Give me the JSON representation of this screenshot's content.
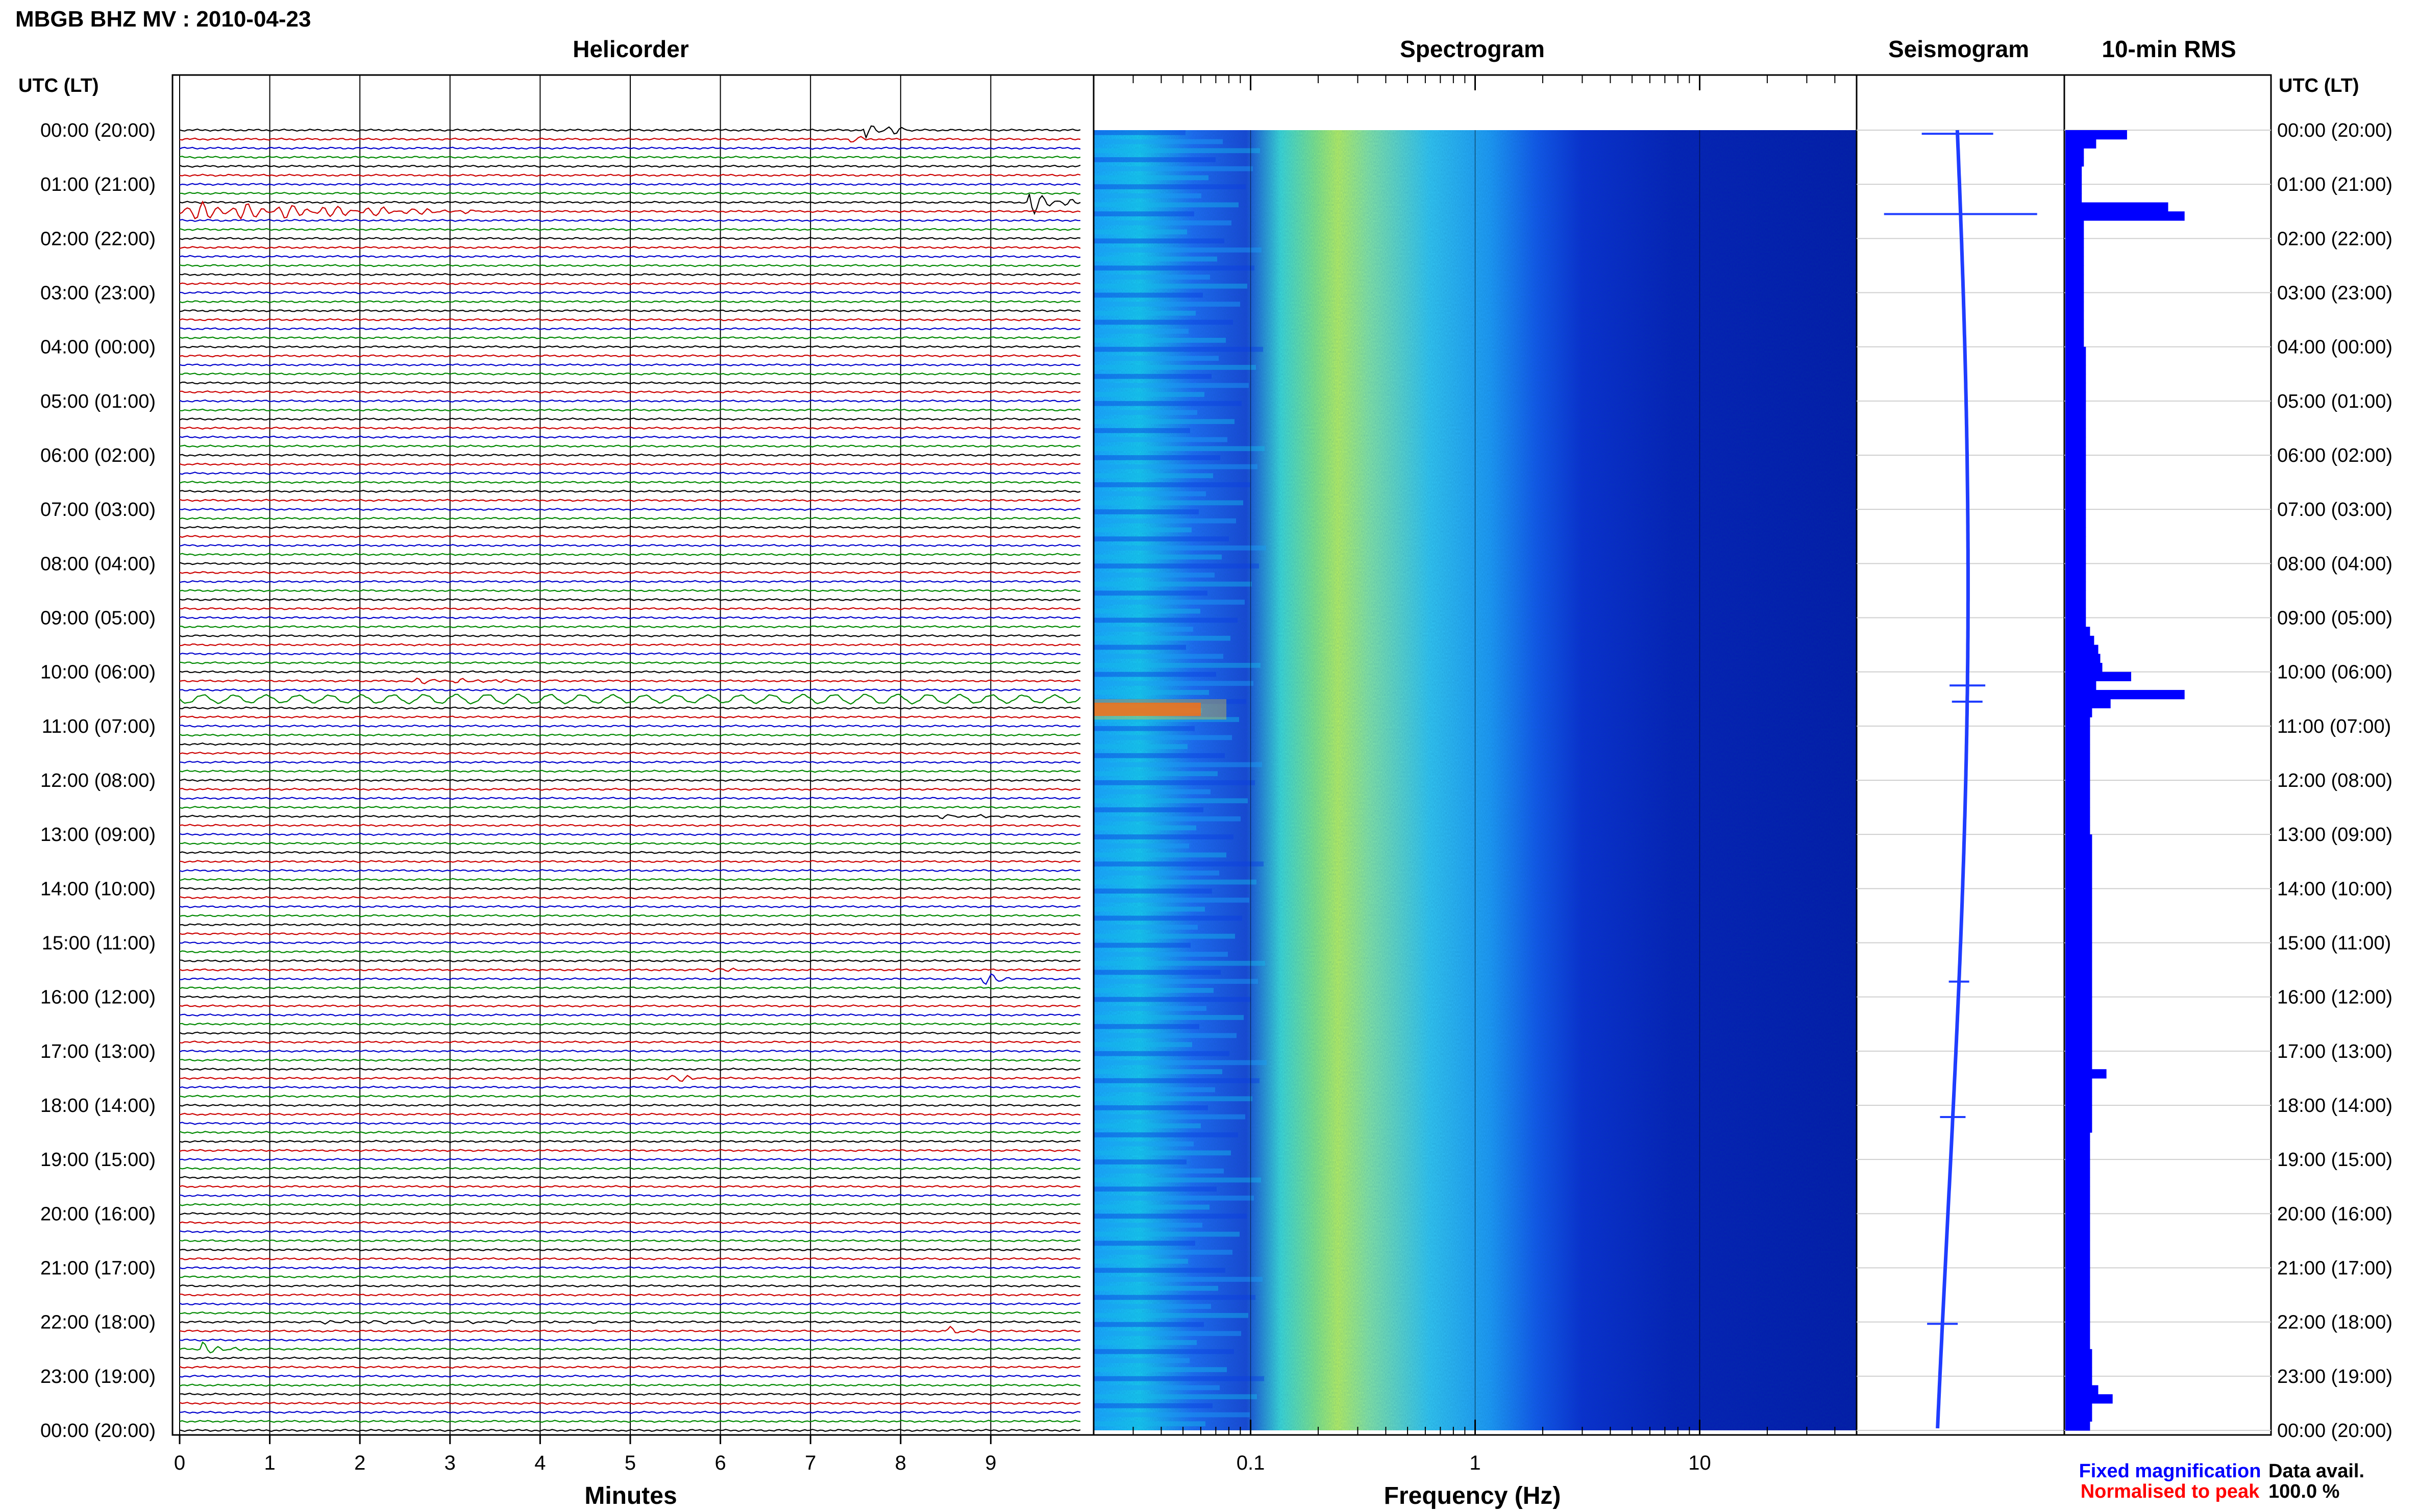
{
  "header": {
    "title": "MBGB BHZ MV : 2010-04-23"
  },
  "panels": {
    "helicorder": "Helicorder",
    "spectrogram": "Spectrogram",
    "seismogram": "Seismogram",
    "rms": "10-min RMS"
  },
  "time_axis_label": "UTC (LT)",
  "footer": {
    "fixed": "Fixed magnification",
    "normalised": "Normalised to peak",
    "avail_label": "Data avail.",
    "avail_value": "100.0 %"
  },
  "colors": {
    "trace_cycle": [
      "#000000",
      "#cc0000",
      "#0000cc",
      "#008800"
    ],
    "fixed_text": "#0000ff",
    "normalised_text": "#ff0000",
    "rms_bar": "#0000ff",
    "seismogram": "#1f3dff"
  },
  "chart_data": [
    {
      "type": "line",
      "name": "helicorder",
      "title": "Helicorder",
      "xlabel": "Minutes",
      "xticks": [
        0,
        1,
        2,
        3,
        4,
        5,
        6,
        7,
        8,
        9
      ],
      "xlim": [
        0,
        10
      ],
      "rows_per_hour": 6,
      "ytick_labels": [
        "00:00 (20:00)",
        "01:00 (21:00)",
        "02:00 (22:00)",
        "03:00 (23:00)",
        "04:00 (00:00)",
        "05:00 (01:00)",
        "06:00 (02:00)",
        "07:00 (03:00)",
        "08:00 (04:00)",
        "09:00 (05:00)",
        "10:00 (06:00)",
        "11:00 (07:00)",
        "12:00 (08:00)",
        "13:00 (09:00)",
        "14:00 (10:00)",
        "15:00 (11:00)",
        "16:00 (12:00)",
        "17:00 (13:00)",
        "18:00 (14:00)",
        "19:00 (15:00)",
        "20:00 (16:00)",
        "21:00 (17:00)",
        "22:00 (18:00)",
        "23:00 (19:00)",
        "00:00 (20:00)"
      ],
      "events": [
        {
          "row": 0,
          "minute": 7.6,
          "duration": 0.5,
          "amp": 1.3
        },
        {
          "row": 1,
          "minute": 7.4,
          "duration": 0.25,
          "amp": 0.5
        },
        {
          "row": 9,
          "minute": 0.0,
          "duration": 3.5,
          "amp": 1.1
        },
        {
          "row": 8,
          "minute": 9.4,
          "duration": 0.6,
          "amp": 1.5
        },
        {
          "row": 63,
          "minute": 0.0,
          "duration": 10.0,
          "amp": 0.45,
          "period": 0.35
        },
        {
          "row": 61,
          "minute": 2.5,
          "duration": 2.0,
          "amp": 0.3
        },
        {
          "row": 76,
          "minute": 8.3,
          "duration": 1.5,
          "amp": 0.2
        },
        {
          "row": 93,
          "minute": 5.8,
          "duration": 0.5,
          "amp": 0.35
        },
        {
          "row": 94,
          "minute": 8.9,
          "duration": 0.5,
          "amp": 0.7
        },
        {
          "row": 105,
          "minute": 5.4,
          "duration": 0.5,
          "amp": 0.5
        },
        {
          "row": 133,
          "minute": 8.5,
          "duration": 0.5,
          "amp": 0.5
        },
        {
          "row": 135,
          "minute": 0.25,
          "duration": 0.5,
          "amp": 0.8
        },
        {
          "row": 132,
          "minute": 1.5,
          "duration": 4.5,
          "amp": 0.18
        }
      ]
    },
    {
      "type": "heatmap",
      "name": "spectrogram",
      "title": "Spectrogram",
      "xlabel": "Frequency (Hz)",
      "xscale": "log",
      "xlim": [
        0.02,
        50
      ],
      "xticks": [
        0.1,
        1,
        10
      ],
      "xtick_labels": [
        "0.1",
        "1",
        "10"
      ],
      "colormap": "jet",
      "peak_band_hz": [
        0.15,
        0.4
      ]
    },
    {
      "type": "line",
      "name": "seismogram",
      "title": "Seismogram"
    },
    {
      "type": "bar",
      "name": "rms",
      "title": "10-min RMS",
      "orientation": "horizontal",
      "bins": 144,
      "values": [
        30,
        15,
        9,
        9,
        8,
        8,
        8,
        8,
        50,
        58,
        9,
        9,
        9,
        9,
        9,
        9,
        9,
        9,
        9,
        9,
        9,
        9,
        9,
        9,
        10,
        10,
        10,
        10,
        10,
        10,
        10,
        10,
        10,
        10,
        10,
        10,
        10,
        10,
        10,
        10,
        10,
        10,
        10,
        10,
        10,
        10,
        10,
        10,
        10,
        10,
        10,
        10,
        10,
        10,
        10,
        12,
        14,
        16,
        17,
        18,
        32,
        15,
        58,
        22,
        13,
        12,
        12,
        12,
        12,
        12,
        12,
        12,
        12,
        12,
        12,
        12,
        12,
        12,
        13,
        13,
        13,
        13,
        13,
        13,
        13,
        13,
        13,
        13,
        13,
        13,
        13,
        13,
        13,
        13,
        13,
        13,
        13,
        13,
        13,
        13,
        13,
        13,
        13,
        13,
        20,
        13,
        13,
        13,
        13,
        13,
        13,
        12,
        12,
        12,
        12,
        12,
        12,
        12,
        12,
        12,
        12,
        12,
        12,
        12,
        12,
        12,
        12,
        12,
        12,
        12,
        12,
        12,
        12,
        12,
        12,
        13,
        13,
        13,
        13,
        16,
        23,
        13,
        13,
        12
      ],
      "xlim": [
        0,
        100
      ]
    }
  ]
}
